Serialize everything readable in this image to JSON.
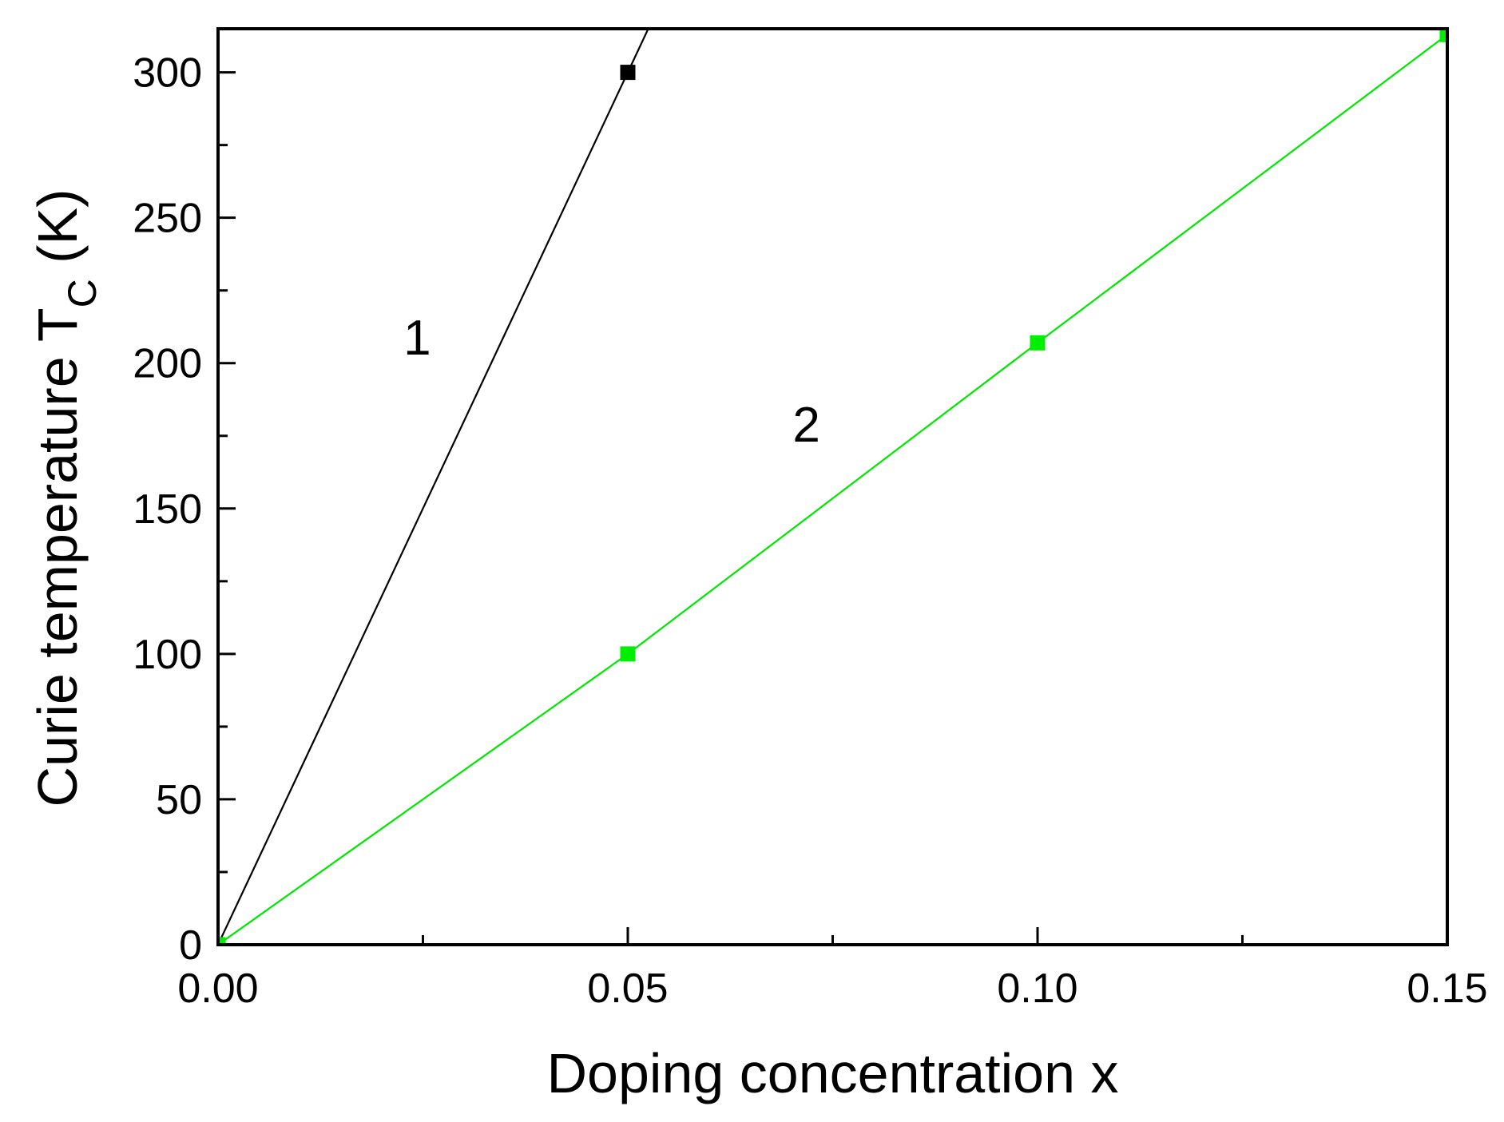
{
  "chart_data": {
    "type": "line",
    "xlabel": "Doping concentration x",
    "ylabel": {
      "main": "Curie temperature T",
      "subscript": "C",
      "unit": " (K)"
    },
    "xlim": [
      0.0,
      0.15
    ],
    "ylim": [
      0,
      315
    ],
    "x_ticks": [
      {
        "value": 0.0,
        "label": "0.00"
      },
      {
        "value": 0.05,
        "label": "0.05"
      },
      {
        "value": 0.1,
        "label": "0.10"
      },
      {
        "value": 0.15,
        "label": "0.15"
      }
    ],
    "x_minor_ticks": [
      0.025,
      0.075,
      0.125
    ],
    "y_ticks": [
      {
        "value": 0,
        "label": "0"
      },
      {
        "value": 50,
        "label": "50"
      },
      {
        "value": 100,
        "label": "100"
      },
      {
        "value": 150,
        "label": "150"
      },
      {
        "value": 200,
        "label": "200"
      },
      {
        "value": 250,
        "label": "250"
      },
      {
        "value": 300,
        "label": "300"
      }
    ],
    "y_minor_ticks": [
      25,
      75,
      125,
      175,
      225,
      275
    ],
    "grid": false,
    "series": [
      {
        "name": "1",
        "color": "#000000",
        "marker_color": "#000000",
        "points": [
          {
            "x": 0.0,
            "y": 0
          },
          {
            "x": 0.05,
            "y": 300
          }
        ],
        "line_extends_to": {
          "x": 0.0525,
          "y": 315
        }
      },
      {
        "name": "2",
        "color": "#00e600",
        "marker_color": "#00ee00",
        "points": [
          {
            "x": 0.0,
            "y": 0
          },
          {
            "x": 0.05,
            "y": 100
          },
          {
            "x": 0.1,
            "y": 207
          },
          {
            "x": 0.15,
            "y": 313
          }
        ]
      }
    ],
    "annotations": [
      {
        "text": "1",
        "x": 0.0243,
        "y": 203
      },
      {
        "text": "2",
        "x": 0.0718,
        "y": 173
      }
    ]
  }
}
